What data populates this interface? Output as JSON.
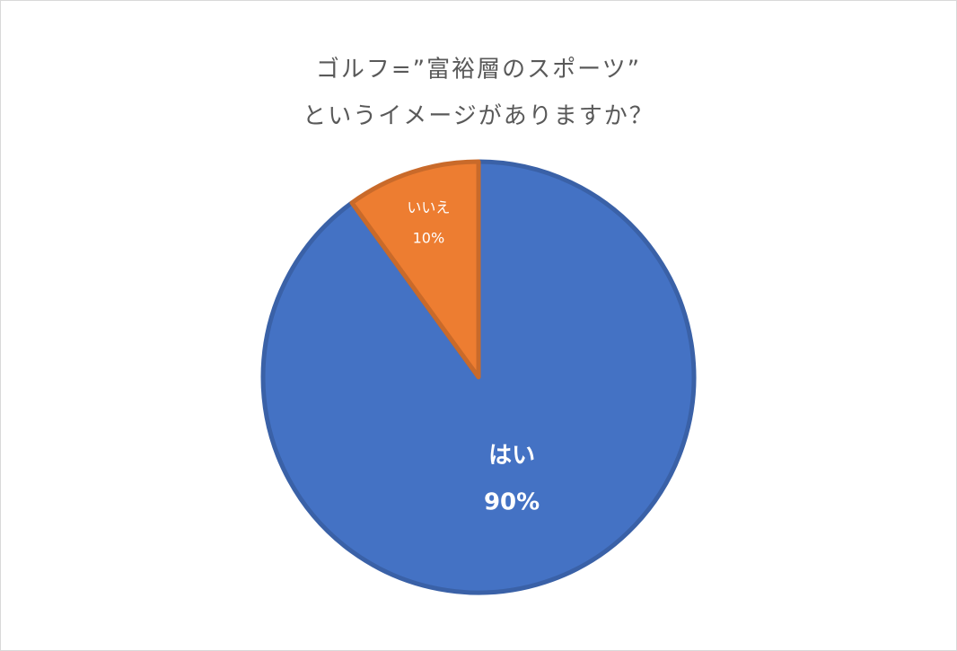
{
  "chart_data": {
    "type": "pie",
    "title": [
      "ゴルフ=”富裕層のスポーツ”",
      "というイメージがありますか？"
    ],
    "categories": [
      "はい",
      "いいえ"
    ],
    "values": [
      90,
      10
    ],
    "value_labels": [
      "90%",
      "10%"
    ],
    "colors": [
      "#4472c4",
      "#ed7d31"
    ]
  }
}
